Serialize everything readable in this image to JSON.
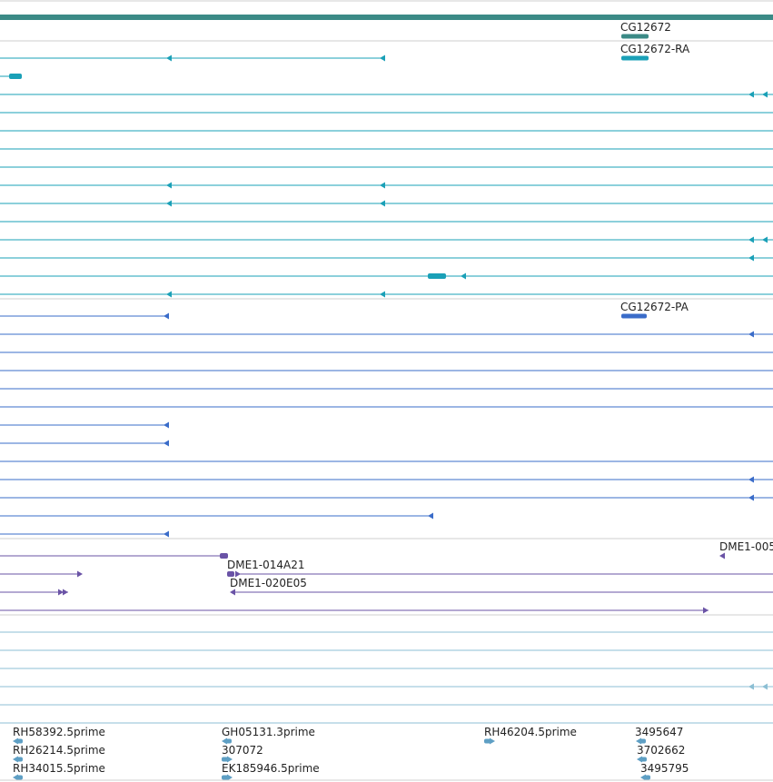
{
  "viewer": {
    "tracks": {
      "gene": {
        "name": "gene-track",
        "label": "CG12672",
        "color": "#3b8a86"
      },
      "ra": {
        "name": "transcript-RA-track",
        "label": "CG12672-RA",
        "color": "#1aa0b7"
      },
      "pa": {
        "name": "transcript-PA-track",
        "label": "CG12672-PA",
        "color": "#3a6cc9"
      },
      "bac": {
        "name": "bac-clone-track",
        "labels": [
          "DME1-014A21",
          "DME1-020E05",
          "DME1-005"
        ],
        "color": "#6a53a6"
      },
      "est": {
        "name": "est-track",
        "color": "#5e9fc4",
        "labels": [
          "RH58392.5prime",
          "GH05131.3prime",
          "RH46204.5prime",
          "3495647",
          "RH26214.5prime",
          "307072",
          "3702662",
          "RH34015.5prime",
          "EK185946.5prime",
          "3495795"
        ]
      }
    }
  }
}
